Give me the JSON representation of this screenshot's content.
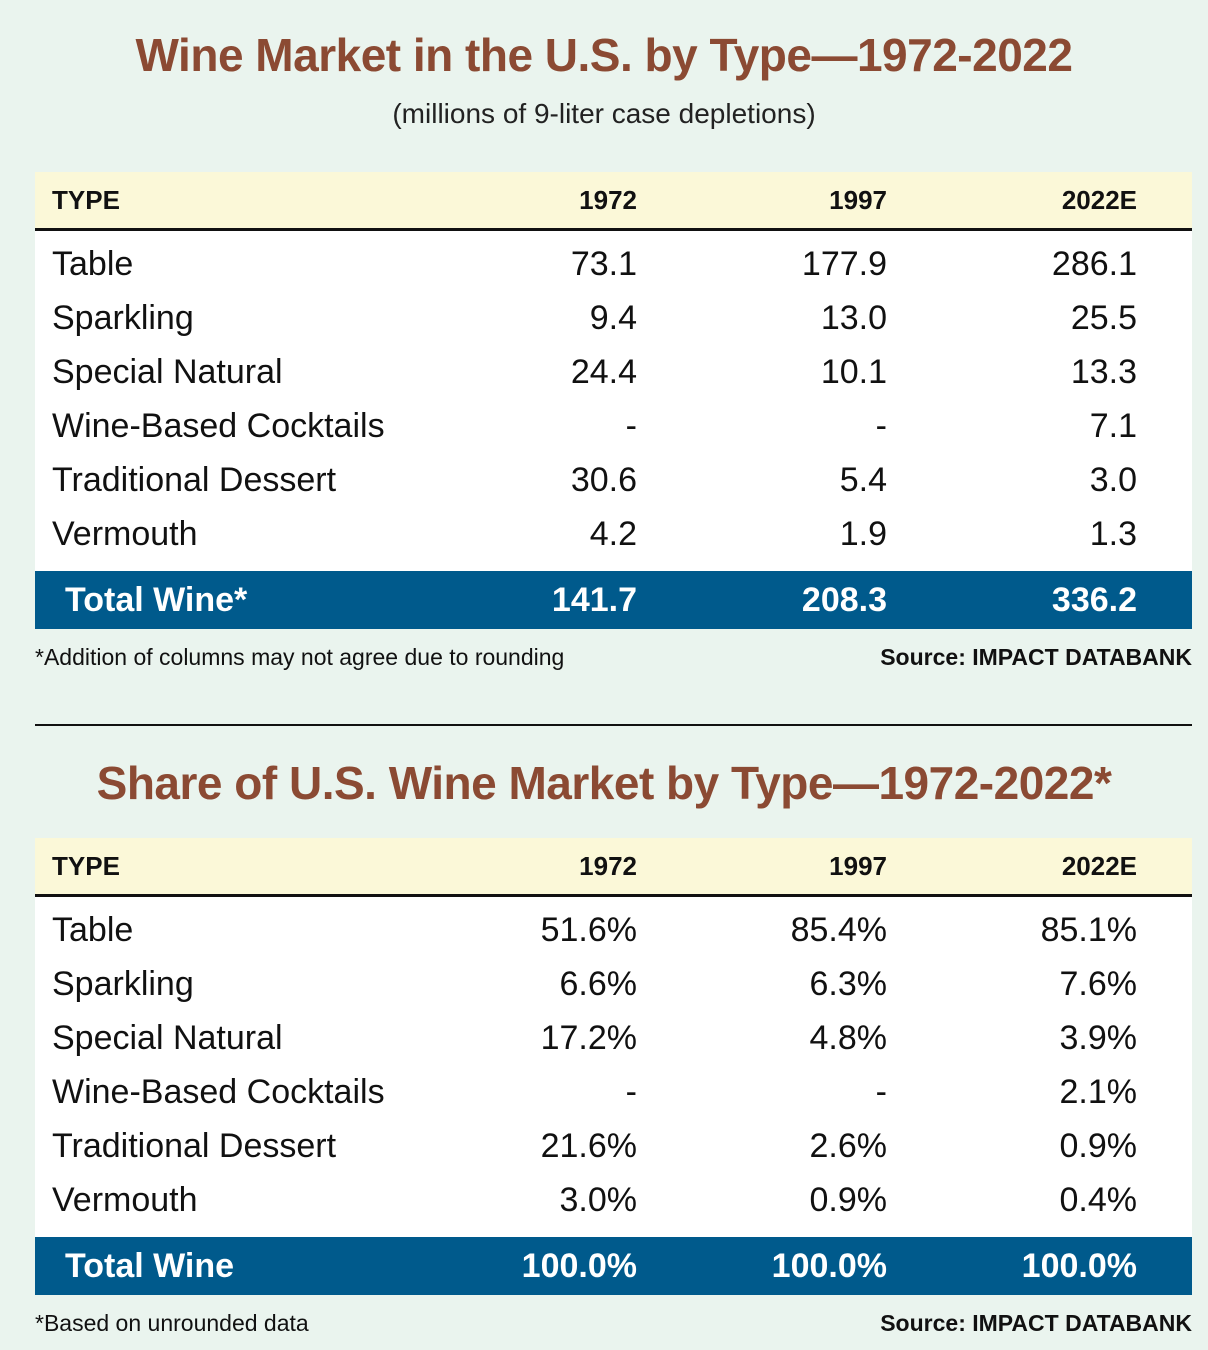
{
  "volume": {
    "title": "Wine Market in the U.S. by Type—1972-2022",
    "subtitle": "(millions of 9-liter case depletions)",
    "headers": [
      "TYPE",
      "1972",
      "1997",
      "2022E"
    ],
    "rows": [
      {
        "type": "Table",
        "v1972": "73.1",
        "v1997": "177.9",
        "v2022": "286.1"
      },
      {
        "type": "Sparkling",
        "v1972": "9.4",
        "v1997": "13.0",
        "v2022": "25.5"
      },
      {
        "type": "Special Natural",
        "v1972": "24.4",
        "v1997": "10.1",
        "v2022": "13.3"
      },
      {
        "type": "Wine-Based Cocktails",
        "v1972": "-",
        "v1997": "-",
        "v2022": "7.1"
      },
      {
        "type": "Traditional Dessert",
        "v1972": "30.6",
        "v1997": "5.4",
        "v2022": "3.0"
      },
      {
        "type": "Vermouth",
        "v1972": "4.2",
        "v1997": "1.9",
        "v2022": "1.3"
      }
    ],
    "total": {
      "type": "Total Wine*",
      "v1972": "141.7",
      "v1997": "208.3",
      "v2022": "336.2"
    },
    "footnote": "*Addition of columns may not agree due to rounding",
    "source": "Source: IMPACT DATABANK"
  },
  "share": {
    "title": "Share of U.S. Wine Market by Type—1972-2022*",
    "headers": [
      "TYPE",
      "1972",
      "1997",
      "2022E"
    ],
    "rows": [
      {
        "type": "Table",
        "v1972": "51.6%",
        "v1997": "85.4%",
        "v2022": "85.1%"
      },
      {
        "type": "Sparkling",
        "v1972": "6.6%",
        "v1997": "6.3%",
        "v2022": "7.6%"
      },
      {
        "type": "Special Natural",
        "v1972": "17.2%",
        "v1997": "4.8%",
        "v2022": "3.9%"
      },
      {
        "type": "Wine-Based Cocktails",
        "v1972": "-",
        "v1997": "-",
        "v2022": "2.1%"
      },
      {
        "type": "Traditional Dessert",
        "v1972": "21.6%",
        "v1997": "2.6%",
        "v2022": "0.9%"
      },
      {
        "type": "Vermouth",
        "v1972": "3.0%",
        "v1997": "0.9%",
        "v2022": "0.4%"
      }
    ],
    "total": {
      "type": "Total Wine",
      "v1972": "100.0%",
      "v1997": "100.0%",
      "v2022": "100.0%"
    },
    "footnote": "*Based on unrounded data",
    "source": "Source: IMPACT DATABANK"
  },
  "colors": {
    "title": "#8b4a33",
    "header_bg": "#fbf8d8",
    "total_bg": "#005a8c",
    "page_bg": "#eaf4ee"
  },
  "chart_data": [
    {
      "type": "table",
      "title": "Wine Market in the U.S. by Type—1972-2022",
      "subtitle": "(millions of 9-liter case depletions)",
      "columns": [
        "TYPE",
        "1972",
        "1997",
        "2022E"
      ],
      "categories": [
        "Table",
        "Sparkling",
        "Special Natural",
        "Wine-Based Cocktails",
        "Traditional Dessert",
        "Vermouth",
        "Total Wine*"
      ],
      "series": [
        {
          "name": "1972",
          "values": [
            73.1,
            9.4,
            24.4,
            null,
            30.6,
            4.2,
            141.7
          ]
        },
        {
          "name": "1997",
          "values": [
            177.9,
            13.0,
            10.1,
            null,
            5.4,
            1.9,
            208.3
          ]
        },
        {
          "name": "2022E",
          "values": [
            286.1,
            25.5,
            13.3,
            7.1,
            3.0,
            1.3,
            336.2
          ]
        }
      ]
    },
    {
      "type": "table",
      "title": "Share of U.S. Wine Market by Type—1972-2022*",
      "columns": [
        "TYPE",
        "1972",
        "1997",
        "2022E"
      ],
      "categories": [
        "Table",
        "Sparkling",
        "Special Natural",
        "Wine-Based Cocktails",
        "Traditional Dessert",
        "Vermouth",
        "Total Wine"
      ],
      "series": [
        {
          "name": "1972",
          "values": [
            51.6,
            6.6,
            17.2,
            null,
            21.6,
            3.0,
            100.0
          ]
        },
        {
          "name": "1997",
          "values": [
            85.4,
            6.3,
            4.8,
            null,
            2.6,
            0.9,
            100.0
          ]
        },
        {
          "name": "2022E",
          "values": [
            85.1,
            7.6,
            3.9,
            2.1,
            0.9,
            0.4,
            100.0
          ]
        }
      ]
    }
  ]
}
